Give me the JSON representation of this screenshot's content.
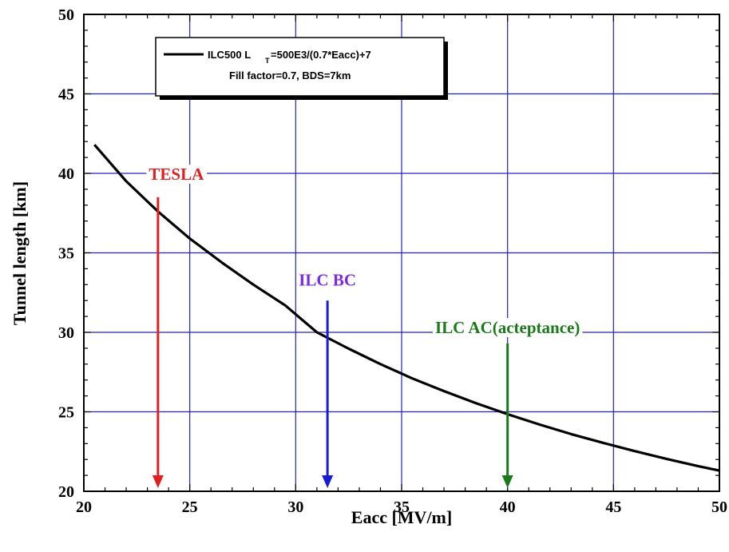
{
  "chart_data": {
    "type": "line",
    "xlabel": "Eacc [MV/m]",
    "ylabel": "Tunnel length [km]",
    "xlim": [
      20,
      50
    ],
    "ylim": [
      20,
      50
    ],
    "x_ticks": [
      20,
      25,
      30,
      35,
      40,
      45,
      50
    ],
    "y_ticks": [
      20,
      25,
      30,
      35,
      40,
      45,
      50
    ],
    "x_tick_labels": [
      "20",
      "25",
      "30",
      "35",
      "40",
      "45",
      "50"
    ],
    "y_tick_labels": [
      "20",
      "25",
      "30",
      "35",
      "40",
      "45",
      "50"
    ],
    "grid": true,
    "legend": {
      "position": "top-left",
      "line1_pre": "ILC500 L",
      "line1_sub": "T",
      "line1_post": "=500E3/(0.7*Eacc)+7",
      "line2": "Fill factor=0.7, BDS=7km"
    },
    "series": [
      {
        "name": "ILC500 L T=500E3/(0.7*Eacc)+7",
        "color": "#000000",
        "x": [
          20.5,
          22,
          23.5,
          25,
          26.5,
          28,
          29.5,
          31,
          32.5,
          34,
          35.5,
          37,
          38.5,
          40,
          41.5,
          43,
          44.5,
          46,
          47.5,
          49,
          50
        ],
        "y": [
          41.8,
          39.5,
          37.6,
          35.9,
          34.4,
          33.0,
          31.7,
          30.0,
          28.97,
          28.0,
          27.1,
          26.3,
          25.55,
          24.85,
          24.2,
          23.6,
          23.05,
          22.53,
          22.04,
          21.58,
          21.3
        ]
      }
    ],
    "annotations": [
      {
        "label": "TESLA",
        "x": 23.5,
        "y_start": 38.5,
        "y_end": 20.0,
        "color": "#e02020"
      },
      {
        "label": "ILC BC",
        "x": 31.5,
        "y_start": 32.0,
        "y_end": 20.0,
        "color": "#1a1ad6",
        "label_color": "#7a2be2"
      },
      {
        "label": "ILC AC(acteptance)",
        "x": 40.0,
        "y_start": 29.3,
        "y_end": 20.0,
        "color": "#1a7a1a"
      }
    ]
  }
}
